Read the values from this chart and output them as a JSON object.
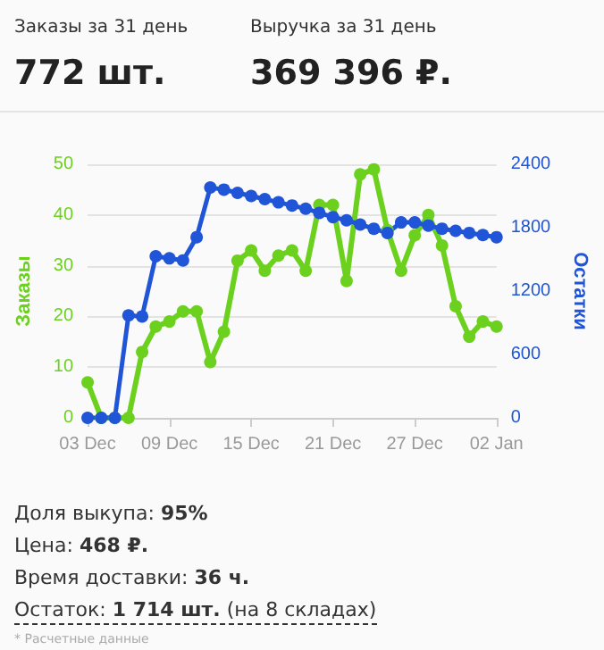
{
  "chart_data": {
    "type": "line",
    "categories": [
      "03 Dec",
      null,
      null,
      null,
      null,
      null,
      "09 Dec",
      null,
      null,
      null,
      null,
      null,
      "15 Dec",
      null,
      null,
      null,
      null,
      null,
      "21 Dec",
      null,
      null,
      null,
      null,
      null,
      "27 Dec",
      null,
      null,
      null,
      null,
      null,
      "02 Jan"
    ],
    "ylabel": "Заказы",
    "y2label": "Остатки",
    "ylim": [
      0,
      50
    ],
    "yticks": [
      0,
      10,
      20,
      30,
      40,
      50
    ],
    "y2lim": [
      0,
      2400
    ],
    "y2ticks": [
      0,
      600,
      1200,
      1800,
      2400
    ],
    "grid": "y",
    "marker": "circle",
    "line_style": "solid",
    "series": [
      {
        "color": "#6cd11e",
        "values": [
          7,
          0,
          0,
          0,
          13,
          18,
          19,
          21,
          21,
          11,
          17,
          31,
          33,
          29,
          32,
          33,
          29,
          42,
          42,
          27,
          48,
          49,
          37,
          29,
          36,
          40,
          34,
          22,
          16,
          19,
          18
        ]
      },
      {
        "color": "#1f55d6",
        "axis": "y2",
        "values": [
          0,
          0,
          0,
          970,
          960,
          1530,
          1510,
          1490,
          1710,
          2180,
          2160,
          2130,
          2100,
          2070,
          2040,
          2010,
          1980,
          1940,
          1900,
          1870,
          1830,
          1790,
          1750,
          1850,
          1850,
          1820,
          1790,
          1770,
          1750,
          1730,
          1710
        ]
      }
    ],
    "annotations": [
      "Заказы за 31 день",
      "772 шт.",
      "Выручка за 31 день",
      "369 396 ₽.",
      "Доля выкупа: 95%",
      "Цена: 468 ₽.",
      "Время доставки: 36 ч.",
      "Остаток: 1 714 шт. (на 8 складах)",
      "* Расчетные данные"
    ]
  }
}
